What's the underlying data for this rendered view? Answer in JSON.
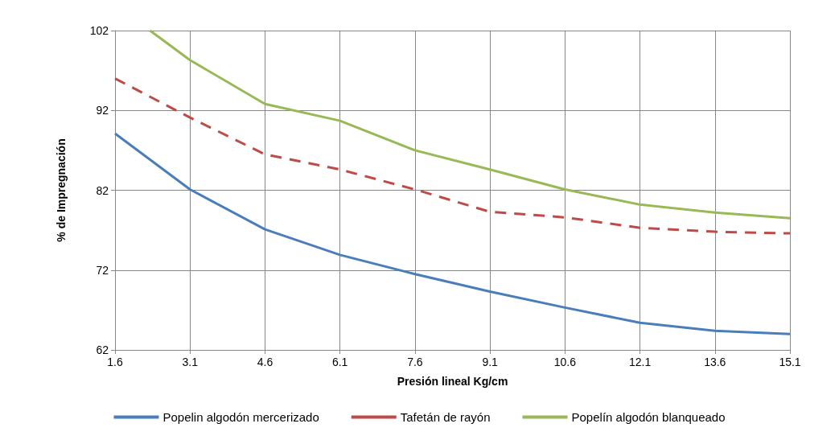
{
  "chart_data": {
    "type": "line",
    "xlabel": "Presión lineal Kg/cm",
    "ylabel": "% de Impregnación",
    "xlim": [
      1.6,
      15.1
    ],
    "xticks": [
      1.6,
      3.1,
      4.6,
      6.1,
      7.6,
      9.1,
      10.6,
      12.1,
      13.6,
      15.1
    ],
    "ylim": [
      62,
      102
    ],
    "yticks": [
      62,
      72,
      82,
      92,
      102
    ],
    "grid": true,
    "legend": "bottom",
    "marker": "none",
    "series": [
      {
        "name": "Popelin algodón mercerizado",
        "color": "#4a7ebb",
        "line_style": "solid",
        "x": [
          1.6,
          3.1,
          4.6,
          6.1,
          7.6,
          9.1,
          10.6,
          12.1,
          13.6,
          15.1
        ],
        "values": [
          89.1,
          82.1,
          77.1,
          73.9,
          71.5,
          69.3,
          67.3,
          65.4,
          64.4,
          64.0
        ]
      },
      {
        "name": "Tafetán de rayón",
        "color": "#be4b48",
        "line_style": "dashed",
        "x": [
          1.6,
          3.1,
          4.6,
          6.1,
          7.6,
          9.1,
          10.6,
          12.1,
          13.6,
          15.1
        ],
        "values": [
          96.0,
          91.1,
          86.5,
          84.6,
          82.1,
          79.3,
          78.6,
          77.3,
          76.8,
          76.6
        ]
      },
      {
        "name": "Popelín algodón blanqueado",
        "color": "#98b954",
        "line_style": "solid",
        "x": [
          2.3,
          3.1,
          4.6,
          6.1,
          7.6,
          9.1,
          10.6,
          12.1,
          13.6,
          15.1
        ],
        "values": [
          102,
          98.3,
          92.8,
          90.7,
          87.0,
          84.6,
          82.1,
          80.2,
          79.2,
          78.5
        ]
      }
    ]
  }
}
